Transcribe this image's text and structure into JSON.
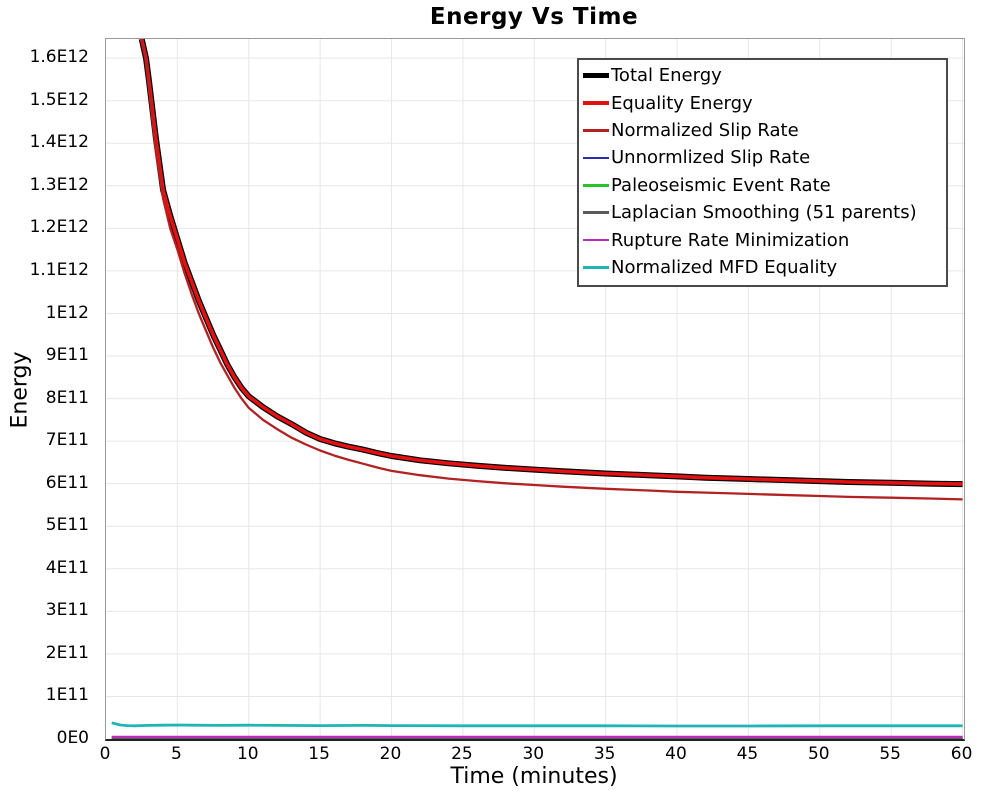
{
  "x_axis": {
    "ticks": [
      "0",
      "5",
      "10",
      "15",
      "20",
      "25",
      "30",
      "35",
      "40",
      "45",
      "50",
      "55",
      "60"
    ]
  },
  "y_axis": {
    "ticks": [
      "0E0",
      "1E11",
      "2E11",
      "3E11",
      "4E11",
      "5E11",
      "6E11",
      "7E11",
      "8E11",
      "9E11",
      "1E12",
      "1.1E12",
      "1.2E12",
      "1.3E12",
      "1.4E12",
      "1.5E12",
      "1.6E12"
    ]
  },
  "colors": {
    "grid": "#e7e7e7",
    "axis": "#222222",
    "plot_border": "#9a9a9a",
    "legend_border": "#4a4a4a",
    "text": "#000000"
  },
  "chart_data": {
    "type": "line",
    "title": "Energy Vs Time",
    "xlabel": "Time (minutes)",
    "ylabel": "Energy",
    "xlim": [
      0,
      60.1
    ],
    "ylim": [
      0,
      1645000000000.0
    ],
    "grid": true,
    "legend_position": "top-right",
    "x_tick_step": 5,
    "y_tick_step": 100000000000.0,
    "series": [
      {
        "name": "Total Energy",
        "color": "#000000",
        "width": 6,
        "legend_swatch": 5,
        "x": [
          2.5,
          2.8,
          3,
          3.5,
          4,
          4.5,
          5,
          5.5,
          6,
          6.5,
          7,
          7.5,
          8,
          8.5,
          9,
          9.5,
          10,
          11,
          12,
          13,
          14,
          15,
          16,
          17,
          18,
          19,
          20,
          22,
          24,
          26,
          28,
          30,
          32,
          35,
          38,
          40,
          42,
          45,
          48,
          50,
          52,
          55,
          58,
          60
        ],
        "values": [
          1645000000000.0,
          1600000000000.0,
          1550000000000.0,
          1410000000000.0,
          1290000000000.0,
          1230000000000.0,
          1175000000000.0,
          1120000000000.0,
          1075000000000.0,
          1030000000000.0,
          990000000000.0,
          950000000000.0,
          915000000000.0,
          880000000000.0,
          850000000000.0,
          825000000000.0,
          805000000000.0,
          780000000000.0,
          758000000000.0,
          740000000000.0,
          720000000000.0,
          705000000000.0,
          695000000000.0,
          687000000000.0,
          680000000000.0,
          672000000000.0,
          665000000000.0,
          655000000000.0,
          648000000000.0,
          642000000000.0,
          637000000000.0,
          633000000000.0,
          629000000000.0,
          624000000000.0,
          620000000000.0,
          617000000000.0,
          614000000000.0,
          611000000000.0,
          608000000000.0,
          606000000000.0,
          604000000000.0,
          602000000000.0,
          600000000000.0,
          599000000000.0
        ]
      },
      {
        "name": "Equality Energy",
        "color": "#e31111",
        "width": 3.6,
        "legend_swatch": 4,
        "x": [
          2.5,
          2.8,
          3,
          3.5,
          4,
          4.5,
          5,
          5.5,
          6,
          6.5,
          7,
          7.5,
          8,
          8.5,
          9,
          9.5,
          10,
          11,
          12,
          13,
          14,
          15,
          16,
          17,
          18,
          19,
          20,
          22,
          24,
          26,
          28,
          30,
          32,
          35,
          38,
          40,
          42,
          45,
          48,
          50,
          52,
          55,
          58,
          60
        ],
        "values": [
          1645000000000.0,
          1600000000000.0,
          1550000000000.0,
          1410000000000.0,
          1290000000000.0,
          1230000000000.0,
          1175000000000.0,
          1120000000000.0,
          1075000000000.0,
          1030000000000.0,
          990000000000.0,
          950000000000.0,
          915000000000.0,
          880000000000.0,
          850000000000.0,
          825000000000.0,
          805000000000.0,
          780000000000.0,
          758000000000.0,
          740000000000.0,
          720000000000.0,
          705000000000.0,
          695000000000.0,
          687000000000.0,
          680000000000.0,
          672000000000.0,
          665000000000.0,
          655000000000.0,
          648000000000.0,
          642000000000.0,
          637000000000.0,
          633000000000.0,
          629000000000.0,
          624000000000.0,
          620000000000.0,
          617000000000.0,
          614000000000.0,
          611000000000.0,
          608000000000.0,
          606000000000.0,
          604000000000.0,
          602000000000.0,
          600000000000.0,
          599000000000.0
        ]
      },
      {
        "name": "Normalized Slip Rate",
        "color": "#b22222",
        "width": 2.3,
        "legend_swatch": 2.5,
        "x": [
          2.45,
          2.75,
          3,
          3.5,
          4,
          4.5,
          5,
          5.5,
          6,
          6.5,
          7,
          7.5,
          8,
          8.5,
          9,
          9.5,
          10,
          11,
          12,
          13,
          14,
          15,
          16,
          17,
          18,
          19,
          20,
          22,
          24,
          26,
          28,
          30,
          32,
          35,
          38,
          40,
          42,
          45,
          48,
          50,
          52,
          55,
          58,
          60
        ],
        "values": [
          1645000000000.0,
          1600000000000.0,
          1530000000000.0,
          1380000000000.0,
          1270000000000.0,
          1200000000000.0,
          1150000000000.0,
          1095000000000.0,
          1045000000000.0,
          1000000000000.0,
          960000000000.0,
          920000000000.0,
          885000000000.0,
          855000000000.0,
          825000000000.0,
          800000000000.0,
          778000000000.0,
          750000000000.0,
          728000000000.0,
          708000000000.0,
          692000000000.0,
          678000000000.0,
          666000000000.0,
          656000000000.0,
          647000000000.0,
          638000000000.0,
          630000000000.0,
          620000000000.0,
          612000000000.0,
          606000000000.0,
          601000000000.0,
          597000000000.0,
          593000000000.0,
          588000000000.0,
          584000000000.0,
          581000000000.0,
          579000000000.0,
          576000000000.0,
          573000000000.0,
          571000000000.0,
          569000000000.0,
          567000000000.0,
          565000000000.0,
          563000000000.0
        ]
      },
      {
        "name": "Unnormlized Slip Rate",
        "color": "#2a2ab5",
        "width": 2,
        "legend_swatch": 2.5,
        "x": [
          0.4,
          60
        ],
        "values": [
          1500000000.0,
          1500000000.0
        ]
      },
      {
        "name": "Paleoseismic Event Rate",
        "color": "#27c427",
        "width": 2,
        "legend_swatch": 2.5,
        "x": [
          0.4,
          60
        ],
        "values": [
          2500000000.0,
          2500000000.0
        ]
      },
      {
        "name": "Laplacian Smoothing (51 parents)",
        "color": "#5a5a5a",
        "width": 2,
        "legend_swatch": 2.5,
        "x": [
          0.4,
          60
        ],
        "values": [
          1000000000.0,
          1000000000.0
        ]
      },
      {
        "name": "Rupture Rate Minimization",
        "color": "#bb2cbb",
        "width": 2.3,
        "legend_swatch": 2.5,
        "x": [
          0.4,
          10,
          30,
          60
        ],
        "values": [
          5000000000.0,
          5000000000.0,
          5000000000.0,
          5000000000.0
        ]
      },
      {
        "name": "Normalized MFD Equality",
        "color": "#20b5b5",
        "width": 2.8,
        "legend_swatch": 2.5,
        "x": [
          0.4,
          1,
          1.5,
          2,
          3,
          4,
          5,
          6,
          8,
          10,
          12,
          15,
          18,
          20,
          25,
          30,
          35,
          40,
          45,
          50,
          55,
          60
        ],
        "values": [
          38000000000.0,
          33000000000.0,
          31500000000.0,
          31000000000.0,
          32000000000.0,
          32500000000.0,
          33000000000.0,
          32500000000.0,
          32000000000.0,
          32500000000.0,
          32000000000.0,
          31500000000.0,
          32000000000.0,
          31500000000.0,
          31000000000.0,
          31000000000.0,
          31000000000.0,
          30500000000.0,
          30500000000.0,
          31000000000.0,
          31000000000.0,
          31000000000.0
        ]
      }
    ]
  }
}
